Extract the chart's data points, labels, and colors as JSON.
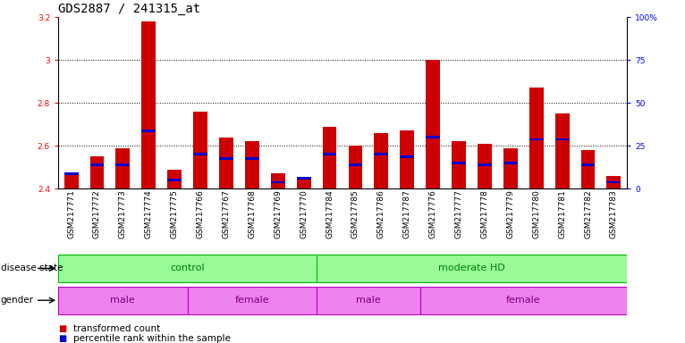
{
  "title": "GDS2887 / 241315_at",
  "samples": [
    "GSM217771",
    "GSM217772",
    "GSM217773",
    "GSM217774",
    "GSM217775",
    "GSM217766",
    "GSM217767",
    "GSM217768",
    "GSM217769",
    "GSM217770",
    "GSM217784",
    "GSM217785",
    "GSM217786",
    "GSM217787",
    "GSM217776",
    "GSM217777",
    "GSM217778",
    "GSM217779",
    "GSM217780",
    "GSM217781",
    "GSM217782",
    "GSM217783"
  ],
  "red_values": [
    2.47,
    2.55,
    2.59,
    3.18,
    2.49,
    2.76,
    2.64,
    2.62,
    2.47,
    2.45,
    2.69,
    2.6,
    2.66,
    2.67,
    3.0,
    2.62,
    2.61,
    2.59,
    2.87,
    2.75,
    2.58,
    2.46
  ],
  "blue_values": [
    2.47,
    2.51,
    2.51,
    2.67,
    2.44,
    2.56,
    2.54,
    2.54,
    2.43,
    2.45,
    2.56,
    2.51,
    2.56,
    2.55,
    2.64,
    2.52,
    2.51,
    2.52,
    2.63,
    2.63,
    2.51,
    2.43
  ],
  "ymin": 2.4,
  "ymax": 3.2,
  "yticks": [
    2.4,
    2.6,
    2.8,
    3.0,
    3.2
  ],
  "ytick_labels": [
    "2.4",
    "2.6",
    "2.8",
    "3",
    "3.2"
  ],
  "right_yticks": [
    0,
    25,
    50,
    75,
    100
  ],
  "right_ytick_labels": [
    "0",
    "25",
    "50",
    "75",
    "100%"
  ],
  "disease_groups": [
    {
      "label": "control",
      "start": 0,
      "end": 9,
      "color": "#98fb98",
      "edge": "#00bb00"
    },
    {
      "label": "moderate HD",
      "start": 10,
      "end": 21,
      "color": "#98fb98",
      "edge": "#00bb00"
    }
  ],
  "gender_groups": [
    {
      "label": "male",
      "start": 0,
      "end": 4,
      "color": "#ee82ee",
      "edge": "#bb00bb"
    },
    {
      "label": "female",
      "start": 5,
      "end": 9,
      "color": "#ee82ee",
      "edge": "#bb00bb"
    },
    {
      "label": "male",
      "start": 10,
      "end": 13,
      "color": "#ee82ee",
      "edge": "#bb00bb"
    },
    {
      "label": "female",
      "start": 14,
      "end": 21,
      "color": "#ee82ee",
      "edge": "#bb00bb"
    }
  ],
  "bar_color": "#cc0000",
  "blue_color": "#0000cc",
  "bar_width": 0.55,
  "background_color": "#ffffff",
  "plot_bg_color": "#ffffff",
  "title_fontsize": 10,
  "tick_fontsize": 6.5,
  "label_fontsize": 7.5,
  "band_fontsize": 8
}
